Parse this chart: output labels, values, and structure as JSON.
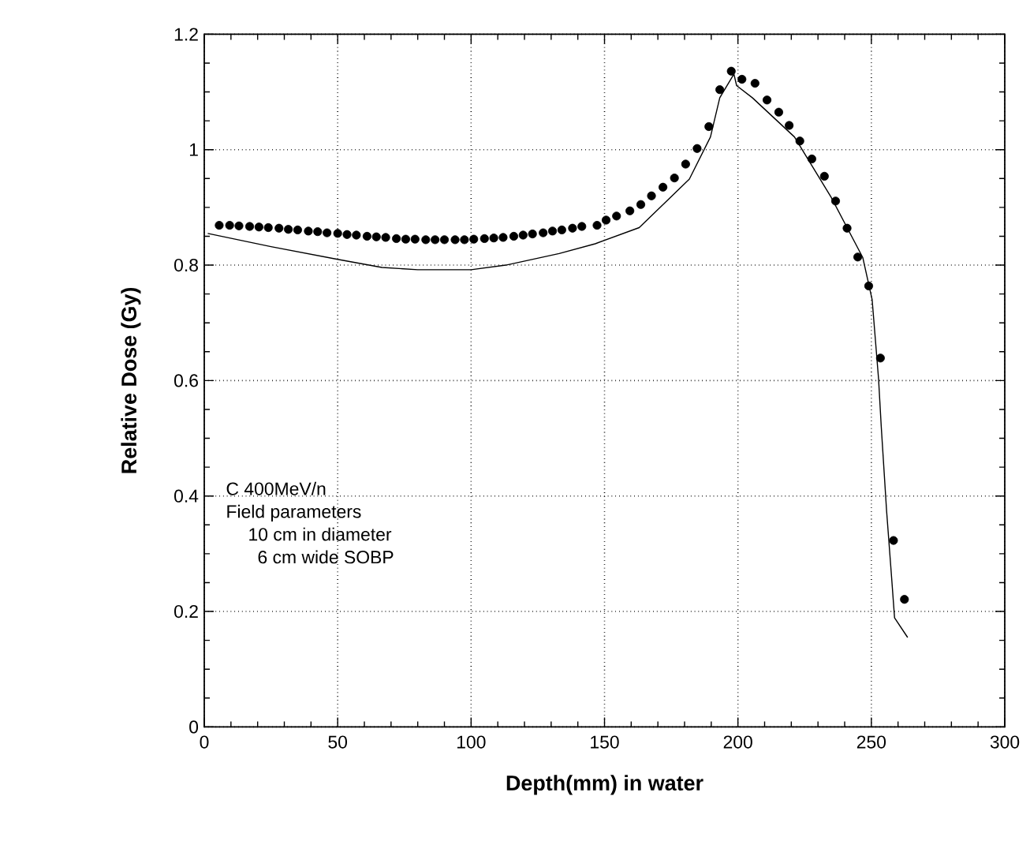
{
  "chart_data": {
    "type": "scatter",
    "xlabel": "Depth(mm) in water",
    "ylabel": "Relative Dose (Gy)",
    "annotations": [
      "C 400MeV/n",
      "Field parameters",
      "10 cm in diameter",
      "6 cm wide SOBP"
    ],
    "xlim": [
      0,
      300
    ],
    "xticks": [
      0,
      50,
      100,
      150,
      200,
      250,
      300
    ],
    "ylim": [
      0,
      1.2
    ],
    "yticks": [
      0,
      0.2,
      0.4,
      0.6,
      0.8,
      1,
      1.2
    ],
    "grid": true,
    "series": [
      {
        "marker": "circle",
        "color": "#000000",
        "x": [
          5.6,
          9.5,
          13,
          17,
          20.5,
          24,
          28,
          31.5,
          35,
          39,
          42.5,
          46,
          50,
          53.5,
          57,
          61,
          64.5,
          68,
          72,
          75.5,
          79,
          83,
          86.5,
          90,
          94,
          97.5,
          101,
          105,
          108.5,
          112,
          116,
          119.5,
          123,
          127,
          130.5,
          134,
          138,
          141.5,
          147.2,
          150.6,
          154.5,
          159.5,
          163.6,
          167.6,
          171.9,
          176.2,
          180.4,
          184.7,
          189.1,
          193.2,
          197.5,
          201.5,
          206.4,
          210.9,
          215.3,
          219.2,
          223.2,
          227.7,
          232.4,
          236.6,
          240.9,
          244.9,
          249,
          253.4,
          258.3,
          262.4
        ],
        "values": [
          0.869,
          0.869,
          0.868,
          0.867,
          0.866,
          0.865,
          0.864,
          0.862,
          0.861,
          0.859,
          0.858,
          0.856,
          0.855,
          0.853,
          0.852,
          0.85,
          0.849,
          0.848,
          0.846,
          0.845,
          0.845,
          0.844,
          0.844,
          0.844,
          0.844,
          0.844,
          0.845,
          0.846,
          0.847,
          0.848,
          0.85,
          0.852,
          0.854,
          0.856,
          0.859,
          0.861,
          0.864,
          0.867,
          0.869,
          0.878,
          0.885,
          0.894,
          0.905,
          0.92,
          0.935,
          0.951,
          0.975,
          1.002,
          1.04,
          1.104,
          1.136,
          1.122,
          1.115,
          1.086,
          1.065,
          1.042,
          1.015,
          0.984,
          0.954,
          0.911,
          0.864,
          0.814,
          0.764,
          0.639,
          0.323,
          0.221
        ]
      },
      {
        "type": "line",
        "marker": "none",
        "line_style": "solid",
        "color": "#000000",
        "x": [
          1.3,
          25,
          50,
          66.6,
          80,
          100,
          113,
          133,
          146.5,
          163,
          181.8,
          189.7,
          193.2,
          198.5,
          199.5,
          205.4,
          221.2,
          235,
          246.8,
          250.3,
          252.7,
          253.7,
          255.7,
          257.7,
          258.7,
          263.6
        ],
        "values": [
          0.855,
          0.832,
          0.81,
          0.796,
          0.792,
          0.792,
          0.8,
          0.82,
          0.837,
          0.865,
          0.949,
          1.022,
          1.09,
          1.131,
          1.111,
          1.09,
          1.022,
          0.917,
          0.813,
          0.74,
          0.603,
          0.521,
          0.375,
          0.252,
          0.189,
          0.155
        ]
      }
    ]
  }
}
